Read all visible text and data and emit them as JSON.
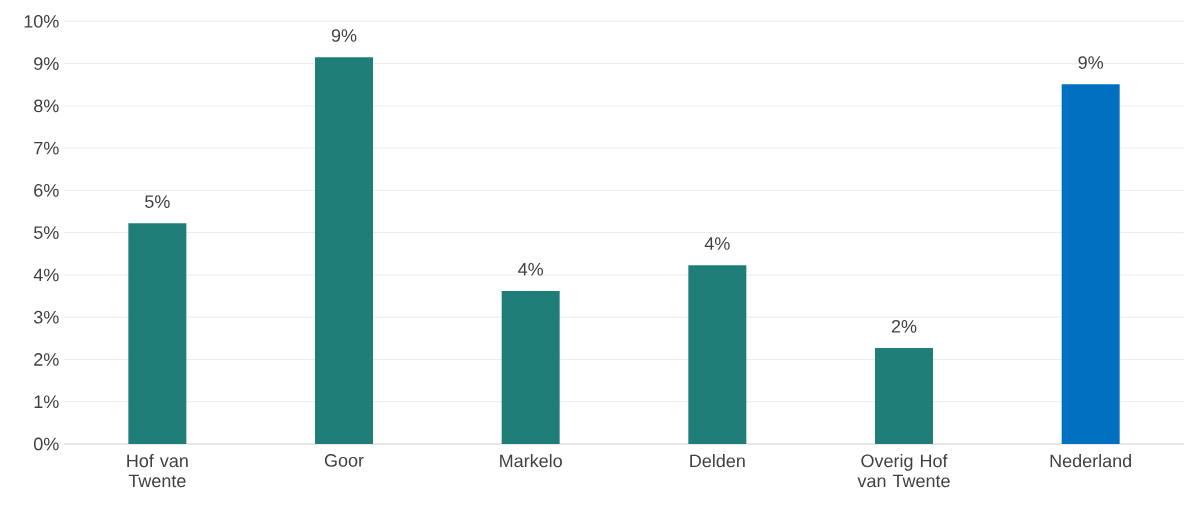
{
  "chart_data": {
    "type": "bar",
    "categories": [
      "Hof van Twente",
      "Goor",
      "Markelo",
      "Delden",
      "Overig Hof van Twente",
      "Nederland"
    ],
    "values": [
      5.22,
      9.15,
      3.62,
      4.23,
      2.27,
      8.51
    ],
    "colors": [
      "#1f7f78",
      "#1f7f78",
      "#1f7f78",
      "#1f7f78",
      "#1f7f78",
      "#0070c0"
    ],
    "value_labels": [
      "5%",
      "9%",
      "4%",
      "4%",
      "2%",
      "9%"
    ],
    "ylim": [
      0,
      10
    ],
    "yticks": [
      {
        "value": 0,
        "label": "0%"
      },
      {
        "value": 1,
        "label": "1%"
      },
      {
        "value": 2,
        "label": "2%"
      },
      {
        "value": 3,
        "label": "3%"
      },
      {
        "value": 4,
        "label": "4%"
      },
      {
        "value": 5,
        "label": "5%"
      },
      {
        "value": 6,
        "label": "6%"
      },
      {
        "value": 7,
        "label": "7%"
      },
      {
        "value": 8,
        "label": "8%"
      },
      {
        "value": 9,
        "label": "9%"
      },
      {
        "value": 10,
        "label": "10%"
      }
    ],
    "grid": "y"
  }
}
